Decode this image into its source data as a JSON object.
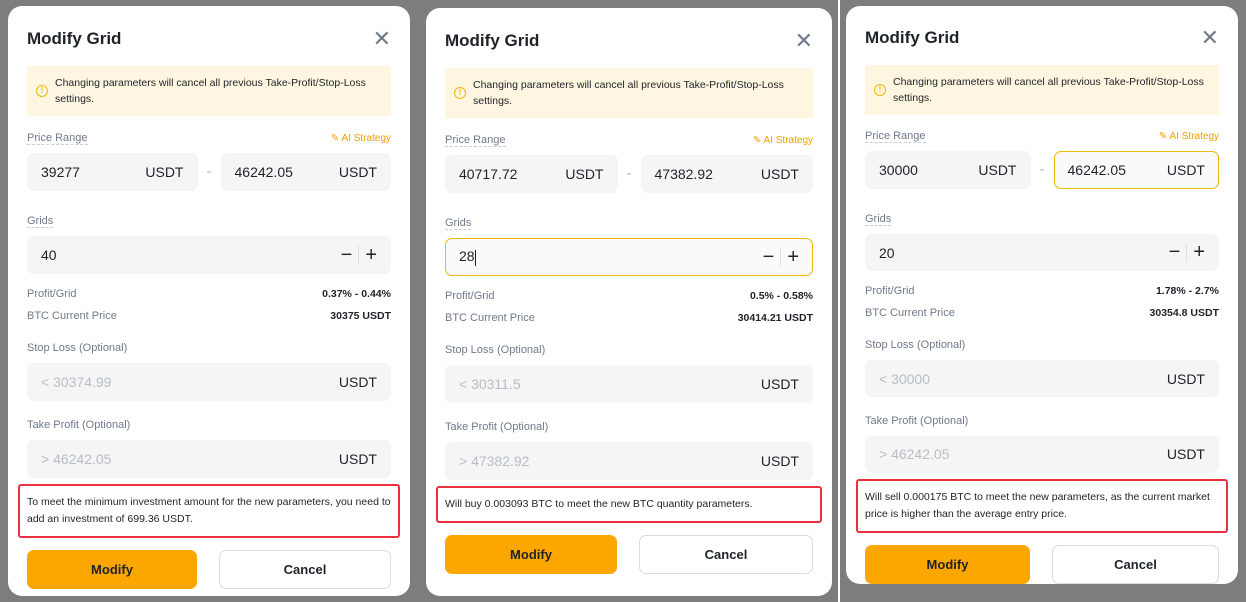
{
  "panels": [
    {
      "title": "Modify Grid",
      "alert": "Changing parameters will cancel all previous Take-Profit/Stop-Loss settings.",
      "price_range_label": "Price Range",
      "ai_strategy": "AI Strategy",
      "lower": "39277",
      "upper": "46242.05",
      "unit": "USDT",
      "grids_label": "Grids",
      "grids": "40",
      "profit_label": "Profit/Grid",
      "profit": "0.37% - 0.44%",
      "btc_label": "BTC Current Price",
      "btc": "30375 USDT",
      "sl_label": "Stop Loss (Optional)",
      "sl_placeholder": "< 30374.99",
      "tp_label": "Take Profit (Optional)",
      "tp_placeholder": "> 46242.05",
      "message": "To meet the minimum investment amount for the new parameters, you need to add an investment of 699.36 USDT.",
      "modify": "Modify",
      "cancel": "Cancel",
      "focus": "none"
    },
    {
      "title": "Modify Grid",
      "alert": "Changing parameters will cancel all previous Take-Profit/Stop-Loss settings.",
      "price_range_label": "Price Range",
      "ai_strategy": "AI Strategy",
      "lower": "40717.72",
      "upper": "47382.92",
      "unit": "USDT",
      "grids_label": "Grids",
      "grids": "28",
      "profit_label": "Profit/Grid",
      "profit": "0.5% - 0.58%",
      "btc_label": "BTC Current Price",
      "btc": "30414.21 USDT",
      "sl_label": "Stop Loss (Optional)",
      "sl_placeholder": "< 30311.5",
      "tp_label": "Take Profit (Optional)",
      "tp_placeholder": "> 47382.92",
      "message": "Will buy 0.003093 BTC to meet the new BTC quantity parameters.",
      "modify": "Modify",
      "cancel": "Cancel",
      "focus": "grids"
    },
    {
      "title": "Modify Grid",
      "alert": "Changing parameters will cancel all previous Take-Profit/Stop-Loss settings.",
      "price_range_label": "Price Range",
      "ai_strategy": "AI Strategy",
      "lower": "30000",
      "upper": "46242.05",
      "unit": "USDT",
      "grids_label": "Grids",
      "grids": "20",
      "profit_label": "Profit/Grid",
      "profit": "1.78% - 2.7%",
      "btc_label": "BTC Current Price",
      "btc": "30354.8 USDT",
      "sl_label": "Stop Loss (Optional)",
      "sl_placeholder": "< 30000",
      "tp_label": "Take Profit (Optional)",
      "tp_placeholder": "> 46242.05",
      "message": "Will sell 0.000175 BTC to meet the new parameters, as the current market price is higher than the average entry price.",
      "modify": "Modify",
      "cancel": "Cancel",
      "focus": "upper"
    }
  ],
  "colors": {
    "accent": "#fca600",
    "warning_bg": "#fef6e0",
    "highlight_border": "#e8303f"
  }
}
